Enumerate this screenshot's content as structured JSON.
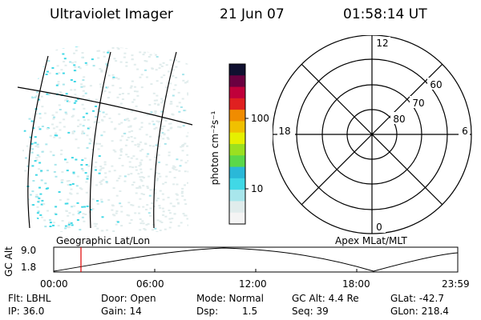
{
  "header": {
    "title": "Ultraviolet Imager",
    "date": "21 Jun 07",
    "time": "01:58:14 UT"
  },
  "colorbar": {
    "unit_label": "photon cm⁻²s⁻¹",
    "tick_100": "100",
    "tick_10": "10",
    "colors": [
      "#f4f4f4",
      "#e0ecec",
      "#a8e6ec",
      "#40d8e6",
      "#2ab8d8",
      "#5bd84a",
      "#9be020",
      "#e6f000",
      "#f0c000",
      "#f08c00",
      "#e02020",
      "#c0003a",
      "#6a0040",
      "#101030"
    ]
  },
  "polar": {
    "hours": [
      "12",
      "18",
      "6",
      "0"
    ],
    "latitudes": [
      "60",
      "70",
      "80"
    ]
  },
  "timeline": {
    "left_label": "Geographic Lat/Lon",
    "right_label": "Apex MLat/MLT",
    "y_axis_title": "GC Alt",
    "y_ticks": [
      "9.0",
      "1.8"
    ],
    "x_ticks": [
      "00:00",
      "06:00",
      "12:00",
      "18:00",
      "23:59"
    ],
    "current_time": "01:58"
  },
  "info": {
    "flt": "Flt: LBHL",
    "door": "Door: Open",
    "mode": "Mode: Normal",
    "gc_alt": "GC Alt: 4.4 Re",
    "glat": "GLat: -42.7",
    "ip": "IP: 36.0",
    "gain": "Gain: 14",
    "dsp_label": "Dsp:",
    "dsp_value": "1.5",
    "seq": "Seq: 39",
    "glon": "GLon: 218.4"
  }
}
